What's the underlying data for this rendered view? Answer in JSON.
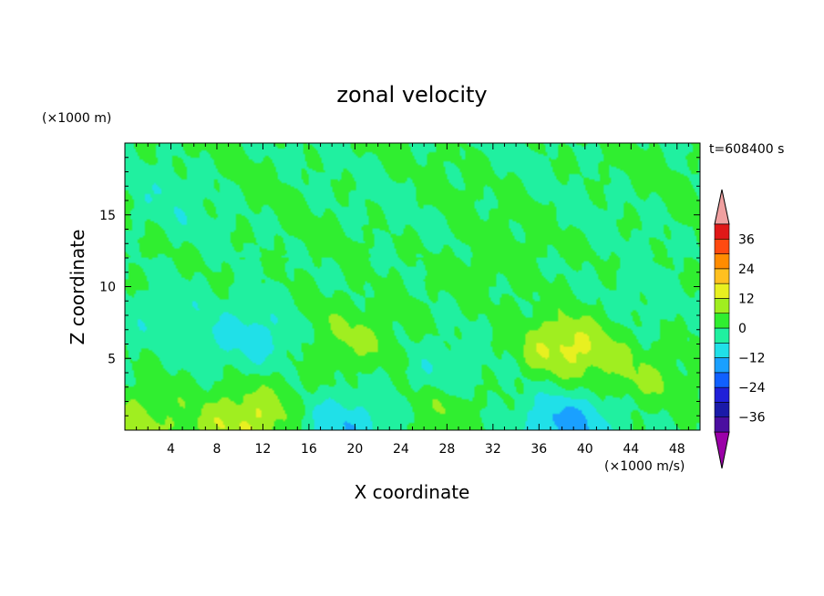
{
  "chart_data": {
    "type": "heatmap",
    "title": "zonal velocity",
    "xlabel": "X coordinate",
    "ylabel": "Z coordinate",
    "y_unit": "(×1000 m)",
    "x_unit": "(×1000 m/s)",
    "time_label": "t=608400 s",
    "xlim": [
      0,
      50
    ],
    "ylim": [
      0,
      20
    ],
    "x_ticks": [
      "4",
      "8",
      "12",
      "16",
      "20",
      "24",
      "28",
      "32",
      "36",
      "40",
      "44",
      "48"
    ],
    "y_ticks": [
      "5",
      "10",
      "15"
    ],
    "colorbar": {
      "labels": [
        "36",
        "24",
        "12",
        "0",
        "−12",
        "−24",
        "−36"
      ],
      "levels": [
        -42,
        -36,
        -30,
        -24,
        -18,
        -12,
        -6,
        0,
        6,
        12,
        18,
        24,
        30,
        36,
        42
      ],
      "colors": [
        "#9b00a8",
        "#4b0ea0",
        "#1a1aa8",
        "#2020d8",
        "#1060ff",
        "#1aa0ff",
        "#20e0e8",
        "#20f0a0",
        "#30ee30",
        "#a0ee20",
        "#e8f020",
        "#ffc020",
        "#ff8c00",
        "#ff4a10",
        "#e01818",
        "#f0a0a0"
      ]
    },
    "features": [
      {
        "x": 10.5,
        "z": 0.5,
        "u": 12
      },
      {
        "x": 38.5,
        "z": 5.8,
        "u": 14
      },
      {
        "x": 19.5,
        "z": 6.5,
        "u": 7
      },
      {
        "x": 1.0,
        "z": 0.5,
        "u": 8
      },
      {
        "x": 45.0,
        "z": 3.5,
        "u": 6
      },
      {
        "x": 27.5,
        "z": 1.5,
        "u": 6
      },
      {
        "x": 11.0,
        "z": 6.5,
        "u": -9
      },
      {
        "x": 18.5,
        "z": 0.4,
        "u": -12
      },
      {
        "x": 38.5,
        "z": 0.6,
        "u": -14
      },
      {
        "x": 28.0,
        "z": 4.0,
        "u": -6
      },
      {
        "x": 3.0,
        "z": 8.0,
        "u": -4
      },
      {
        "x": 4.0,
        "z": 16.0,
        "u": -3
      },
      {
        "x": 45.0,
        "z": 9.0,
        "u": -3
      },
      {
        "x": 14.0,
        "z": 2.0,
        "u": 3
      },
      {
        "x": 31.0,
        "z": 11.5,
        "u": 3
      }
    ]
  }
}
